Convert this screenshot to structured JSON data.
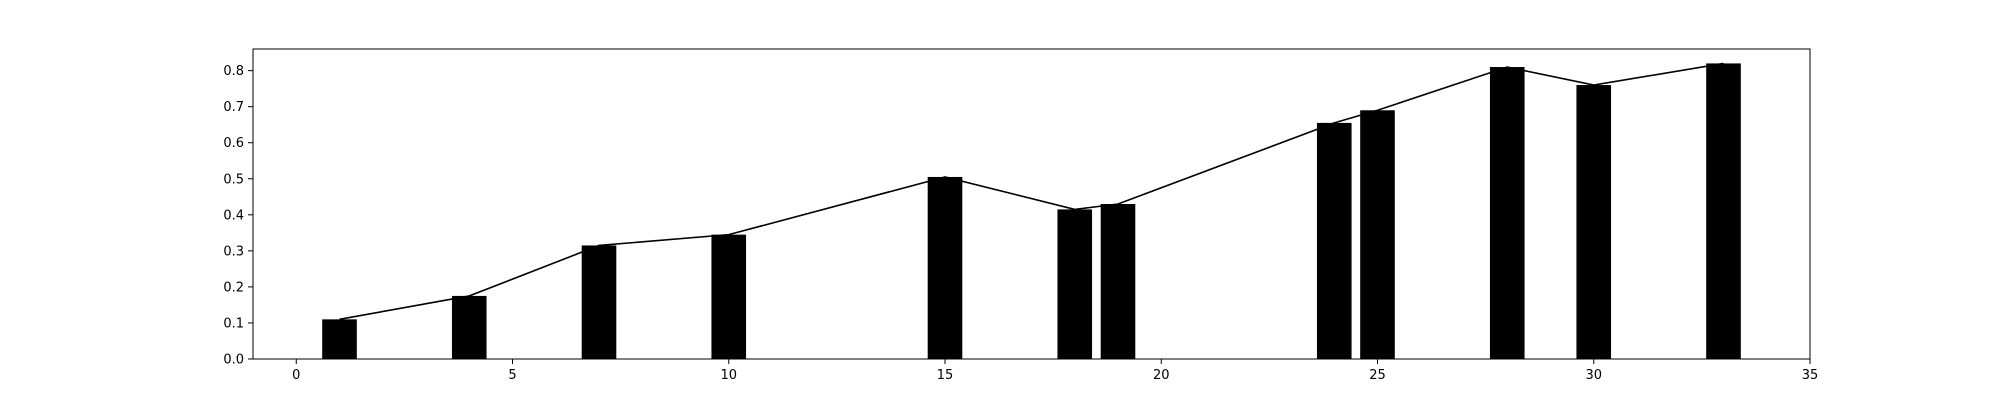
{
  "chart_data": {
    "type": "bar",
    "title": "",
    "xlabel": "",
    "ylabel": "",
    "xlim": [
      -1,
      35
    ],
    "ylim": [
      0,
      0.86
    ],
    "grid": false,
    "xticks": [
      0,
      5,
      10,
      15,
      20,
      25,
      30,
      35
    ],
    "yticks": [
      0.0,
      0.1,
      0.2,
      0.3,
      0.4,
      0.5,
      0.6,
      0.7,
      0.8
    ],
    "bar_width": 0.8,
    "bar_color": "#000000",
    "line_color": "#000000",
    "x": [
      1,
      4,
      7,
      10,
      15,
      18,
      19,
      24,
      25,
      28,
      30,
      33
    ],
    "values": [
      0.11,
      0.175,
      0.315,
      0.345,
      0.505,
      0.415,
      0.43,
      0.655,
      0.69,
      0.81,
      0.76,
      0.82
    ],
    "line_values": [
      0.11,
      0.175,
      0.315,
      0.345,
      0.505,
      0.415,
      0.43,
      0.655,
      0.69,
      0.81,
      0.76,
      0.82
    ]
  }
}
